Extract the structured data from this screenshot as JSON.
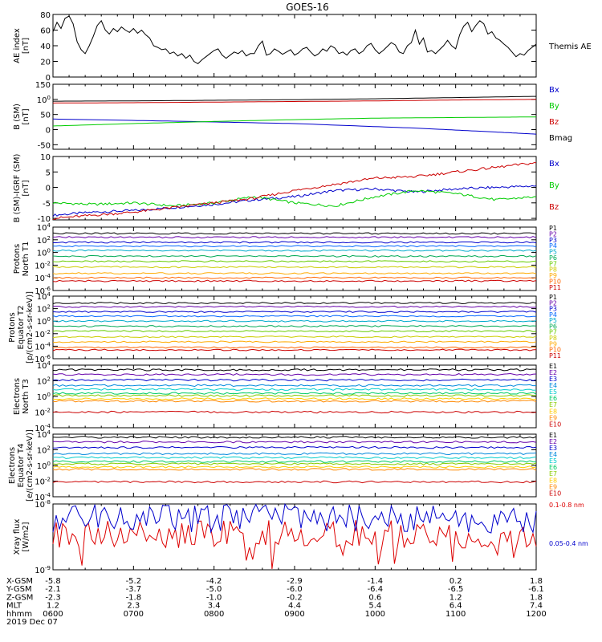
{
  "title": "GOES-16",
  "chart_data": [
    {
      "type": "line",
      "ylabel": [
        "AE index",
        "[nT]"
      ],
      "ylim": [
        0,
        80
      ],
      "yticks": [
        "0",
        "20",
        "40",
        "60",
        "80"
      ],
      "series": [
        {
          "name": "Themis AE",
          "color": "#000000",
          "x": [
            0,
            0.05,
            0.1,
            0.15,
            0.2,
            0.25,
            0.3,
            0.35,
            0.4,
            0.45,
            0.5,
            0.55,
            0.6,
            0.65,
            0.7,
            0.75,
            0.8,
            0.85,
            0.9,
            0.95,
            1.0,
            1.05,
            1.1,
            1.15,
            1.2,
            1.25,
            1.3,
            1.35,
            1.4,
            1.45,
            1.5,
            1.55,
            1.6,
            1.65,
            1.7,
            1.75,
            1.8,
            1.85,
            1.9,
            1.95,
            2.0,
            2.05,
            2.1,
            2.15,
            2.2,
            2.25,
            2.3,
            2.35,
            2.4,
            2.45,
            2.5,
            2.55,
            2.6,
            2.65,
            2.7,
            2.75,
            2.8,
            2.85,
            2.9,
            2.95,
            3.0,
            3.05,
            3.1,
            3.15,
            3.2,
            3.25,
            3.3,
            3.35,
            3.4,
            3.45,
            3.5,
            3.55,
            3.6,
            3.65,
            3.7,
            3.75,
            3.8,
            3.85,
            3.9,
            3.95,
            4.0,
            4.05,
            4.1,
            4.15,
            4.2,
            4.25,
            4.3,
            4.35,
            4.4,
            4.45,
            4.5,
            4.55,
            4.6,
            4.65,
            4.7,
            4.75,
            4.8,
            4.85,
            4.9,
            4.95,
            5.0,
            5.05,
            5.1,
            5.15,
            5.2,
            5.25,
            5.3,
            5.35,
            5.4,
            5.45,
            5.5,
            5.55,
            5.6,
            5.65,
            5.7,
            5.75,
            5.8,
            5.85,
            5.9,
            5.95,
            6.0
          ],
          "y": [
            58,
            70,
            62,
            75,
            78,
            68,
            45,
            35,
            30,
            40,
            52,
            66,
            72,
            60,
            55,
            62,
            58,
            64,
            60,
            57,
            62,
            56,
            60,
            54,
            50,
            40,
            38,
            35,
            36,
            30,
            32,
            27,
            30,
            24,
            28,
            20,
            17,
            22,
            26,
            30,
            34,
            36,
            28,
            24,
            28,
            32,
            30,
            34,
            27,
            30,
            30,
            40,
            46,
            28,
            30,
            36,
            33,
            29,
            32,
            35,
            28,
            31,
            36,
            38,
            32,
            27,
            30,
            36,
            33,
            40,
            37,
            30,
            32,
            28,
            34,
            36,
            30,
            33,
            40,
            43,
            35,
            30,
            34,
            39,
            44,
            41,
            32,
            30,
            40,
            44,
            60,
            42,
            50,
            32,
            34,
            30,
            35,
            40,
            47,
            40,
            36,
            54,
            65,
            70,
            58,
            66,
            72,
            68,
            55,
            58,
            50,
            47,
            42,
            38,
            32,
            26,
            30,
            28,
            34,
            38,
            42
          ]
        }
      ]
    },
    {
      "type": "line",
      "ylabel": [
        "B (SM)",
        "[nT]"
      ],
      "ylim": [
        -65,
        150
      ],
      "yticks": [
        "-50",
        "0",
        "50",
        "100",
        "150"
      ],
      "series": [
        {
          "name": "Bx",
          "color": "#0000cc",
          "x": [
            0,
            1.5,
            3,
            4.5,
            5.5,
            6
          ],
          "y": [
            35,
            28,
            20,
            5,
            -8,
            -15
          ]
        },
        {
          "name": "By",
          "color": "#00cc00",
          "x": [
            0,
            1,
            2,
            3,
            4,
            5,
            6
          ],
          "y": [
            12,
            20,
            27,
            33,
            38,
            40,
            42
          ]
        },
        {
          "name": "Bz",
          "color": "#cc0000",
          "x": [
            0,
            1,
            2,
            3,
            4,
            5,
            6
          ],
          "y": [
            88,
            89,
            91,
            93,
            95,
            98,
            100
          ]
        },
        {
          "name": "Bmag",
          "color": "#000000",
          "x": [
            0,
            1,
            2,
            3,
            4,
            5,
            6
          ],
          "y": [
            94,
            95,
            97,
            99,
            102,
            106,
            110
          ]
        }
      ]
    },
    {
      "type": "line",
      "ylabel": [
        "B (SM)-IGRF (SM)",
        "[nT]"
      ],
      "ylim": [
        -10.5,
        10
      ],
      "yticks": [
        "-10",
        "-5",
        "0",
        "5",
        "10"
      ],
      "series": [
        {
          "name": "Bx",
          "color": "#0000cc",
          "x": [
            0,
            0.5,
            1,
            1.5,
            2,
            2.5,
            3,
            3.5,
            4,
            4.5,
            5,
            5.5,
            6
          ],
          "y": [
            -9,
            -8,
            -7.5,
            -6.5,
            -5.5,
            -4,
            -3,
            -1,
            -0.5,
            -1.5,
            -0.5,
            0,
            0.5
          ]
        },
        {
          "name": "By",
          "color": "#00cc00",
          "x": [
            0,
            0.5,
            1,
            1.5,
            2,
            2.5,
            3,
            3.5,
            4,
            4.5,
            5,
            5.5,
            6
          ],
          "y": [
            -5,
            -5.5,
            -5,
            -6,
            -5,
            -3,
            -5,
            -6,
            -3,
            -1,
            -2,
            -4,
            -3
          ]
        },
        {
          "name": "Bz",
          "color": "#cc0000",
          "x": [
            0,
            0.5,
            1,
            1.5,
            2,
            2.5,
            3,
            3.5,
            4,
            4.5,
            5,
            5.5,
            6
          ],
          "y": [
            -10,
            -9,
            -8,
            -6.5,
            -5,
            -3.5,
            -1,
            1,
            3,
            3.5,
            5,
            6.5,
            8
          ]
        }
      ]
    },
    {
      "type": "line",
      "log": true,
      "ylabel": [
        "Protons",
        "North T1"
      ],
      "ylim": [
        -6,
        4
      ],
      "yticks": [
        "10-6",
        "10-4",
        "10-2",
        "100",
        "102",
        "104"
      ],
      "series": [
        {
          "name": "P1",
          "color": "#000000",
          "level": 3.0
        },
        {
          "name": "P2",
          "color": "#6600aa",
          "level": 2.4
        },
        {
          "name": "P3",
          "color": "#0000cc",
          "level": 1.6
        },
        {
          "name": "P4",
          "color": "#0066ff",
          "level": 1.0
        },
        {
          "name": "P5",
          "color": "#00aacc",
          "level": 0.3
        },
        {
          "name": "P6",
          "color": "#00aa55",
          "level": -0.6
        },
        {
          "name": "P7",
          "color": "#66cc00",
          "level": -1.4
        },
        {
          "name": "P8",
          "color": "#cccc00",
          "level": -2.3
        },
        {
          "name": "P9",
          "color": "#ffaa00",
          "level": -3.3
        },
        {
          "name": "P10",
          "color": "#ff6600",
          "level": -4.0
        },
        {
          "name": "P11",
          "color": "#cc0000",
          "level": -4.5
        }
      ]
    },
    {
      "type": "line",
      "log": true,
      "ylabel": [
        "Protons",
        "Equator T2",
        "[p/(cm2-s-sr-keV)]"
      ],
      "ylim": [
        -6,
        4
      ],
      "yticks": [
        "10-6",
        "10-4",
        "10-2",
        "100",
        "102",
        "104"
      ],
      "series": [
        {
          "name": "P1",
          "color": "#000000",
          "level": 2.9
        },
        {
          "name": "P2",
          "color": "#6600aa",
          "level": 2.3
        },
        {
          "name": "P3",
          "color": "#0000cc",
          "level": 1.5
        },
        {
          "name": "P4",
          "color": "#0066ff",
          "level": 0.8
        },
        {
          "name": "P5",
          "color": "#00aacc",
          "level": 0.0
        },
        {
          "name": "P6",
          "color": "#00aa55",
          "level": -0.8
        },
        {
          "name": "P7",
          "color": "#66cc00",
          "level": -1.6
        },
        {
          "name": "P8",
          "color": "#cccc00",
          "level": -2.5
        },
        {
          "name": "P9",
          "color": "#ffaa00",
          "level": -3.3
        },
        {
          "name": "P10",
          "color": "#ff6600",
          "level": -4.2
        },
        {
          "name": "P11",
          "color": "#cc0000",
          "level": -4.6
        }
      ]
    },
    {
      "type": "line",
      "log": true,
      "ylabel": [
        "Electrons",
        "North T3"
      ],
      "ylim": [
        -4,
        4
      ],
      "yticks": [
        "10-4",
        "10-2",
        "100",
        "102",
        "104"
      ],
      "series": [
        {
          "name": "E1",
          "color": "#000000",
          "level": 3.4
        },
        {
          "name": "E2",
          "color": "#6600aa",
          "level": 2.8
        },
        {
          "name": "E3",
          "color": "#0000cc",
          "level": 2.1
        },
        {
          "name": "E4",
          "color": "#0088dd",
          "level": 1.4
        },
        {
          "name": "E5",
          "color": "#00cccc",
          "level": 0.9
        },
        {
          "name": "E6",
          "color": "#00cc66",
          "level": 0.4
        },
        {
          "name": "E7",
          "color": "#88cc00",
          "level": 0.1
        },
        {
          "name": "E8",
          "color": "#ffcc00",
          "level": -0.3
        },
        {
          "name": "E9",
          "color": "#ff8800",
          "level": -0.6
        },
        {
          "name": "E10",
          "color": "#cc0000",
          "level": -2.0
        }
      ]
    },
    {
      "type": "line",
      "log": true,
      "ylabel": [
        "Electrons",
        "Equator T4",
        "[e/(cm2-s-sr-keV)]"
      ],
      "ylim": [
        -4,
        4
      ],
      "yticks": [
        "10-4",
        "10-2",
        "100",
        "102",
        "104"
      ],
      "series": [
        {
          "name": "E1",
          "color": "#000000",
          "level": 3.6
        },
        {
          "name": "E2",
          "color": "#6600aa",
          "level": 3.0
        },
        {
          "name": "E3",
          "color": "#0000cc",
          "level": 2.3
        },
        {
          "name": "E4",
          "color": "#0088dd",
          "level": 1.5
        },
        {
          "name": "E5",
          "color": "#00cccc",
          "level": 1.0
        },
        {
          "name": "E6",
          "color": "#00cc66",
          "level": 0.5
        },
        {
          "name": "E7",
          "color": "#88cc00",
          "level": 0.2
        },
        {
          "name": "E8",
          "color": "#ffcc00",
          "level": -0.2
        },
        {
          "name": "E9",
          "color": "#ff8800",
          "level": -0.5
        },
        {
          "name": "E10",
          "color": "#cc0000",
          "level": -2.1
        }
      ]
    },
    {
      "type": "line",
      "log": true,
      "ylabel": [
        "Xray flux",
        "[W/m2]"
      ],
      "ylim": [
        -9,
        -8
      ],
      "yticks": [
        "10-9",
        "10-8"
      ],
      "series": [
        {
          "name": "0.1-0.8 nm",
          "color": "#dd0000",
          "level": -8.45
        },
        {
          "name": "0.05-0.4 nm",
          "color": "#0000cc",
          "level": -8.22
        }
      ]
    }
  ],
  "orbit_table": {
    "rows": [
      {
        "label": "X-GSM",
        "values": [
          "-5.8",
          "-5.2",
          "-4.2",
          "-2.9",
          "-1.4",
          "0.2",
          "1.8"
        ]
      },
      {
        "label": "Y-GSM",
        "values": [
          "-2.1",
          "-3.7",
          "-5.0",
          "-6.0",
          "-6.4",
          "-6.5",
          "-6.1"
        ]
      },
      {
        "label": "Z-GSM",
        "values": [
          "-2.3",
          "-1.8",
          "-1.0",
          "-0.2",
          "0.6",
          "1.2",
          "1.8"
        ]
      },
      {
        "label": "MLT",
        "values": [
          "1.2",
          "2.3",
          "3.4",
          "4.4",
          "5.4",
          "6.4",
          "7.4"
        ]
      },
      {
        "label": "hhmm",
        "values": [
          "0600",
          "0700",
          "0800",
          "0900",
          "1000",
          "1100",
          "1200"
        ]
      }
    ],
    "date": "2019 Dec 07"
  }
}
